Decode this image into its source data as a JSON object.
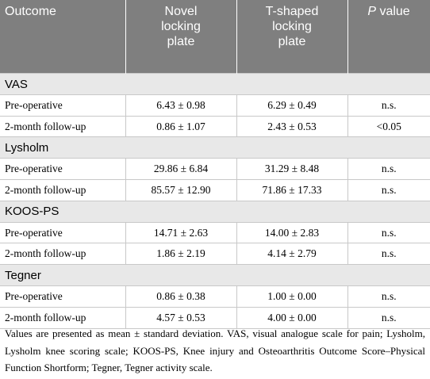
{
  "table": {
    "header": [
      "Outcome",
      "Novel locking plate",
      "T-shaped locking plate"
    ],
    "header_p": {
      "symbol": "P",
      "text": "value"
    },
    "sections": [
      {
        "name": "VAS",
        "rows": [
          [
            "Pre-operative",
            "6.43 ± 0.98",
            "6.29 ± 0.49",
            "n.s."
          ],
          [
            "2-month follow-up",
            "0.86 ± 1.07",
            "2.43 ± 0.53",
            "<0.05"
          ]
        ]
      },
      {
        "name": "Lysholm",
        "rows": [
          [
            "Pre-operative",
            "29.86 ± 6.84",
            "31.29 ± 8.48",
            "n.s."
          ],
          [
            "2-month follow-up",
            "85.57 ± 12.90",
            "71.86 ± 17.33",
            "n.s."
          ]
        ]
      },
      {
        "name": "KOOS-PS",
        "rows": [
          [
            "Pre-operative",
            "14.71 ± 2.63",
            "14.00 ± 2.83",
            "n.s."
          ],
          [
            "2-month follow-up",
            "1.86 ± 2.19",
            "4.14 ± 2.79",
            "n.s."
          ]
        ]
      },
      {
        "name": "Tegner",
        "rows": [
          [
            "Pre-operative",
            "0.86 ± 0.38",
            "1.00 ± 0.00",
            "n.s."
          ],
          [
            "2-month follow-up",
            "4.57 ± 0.53",
            "4.00 ± 0.00",
            "n.s."
          ]
        ]
      }
    ]
  },
  "footnote": "Values are presented as mean ± standard deviation. VAS, visual analogue scale for pain; Lysholm, Lysholm knee scoring scale; KOOS-PS, Knee injury and Osteoarthritis Outcome Score–Physical Function Shortform; Tegner, Tegner activity scale."
}
